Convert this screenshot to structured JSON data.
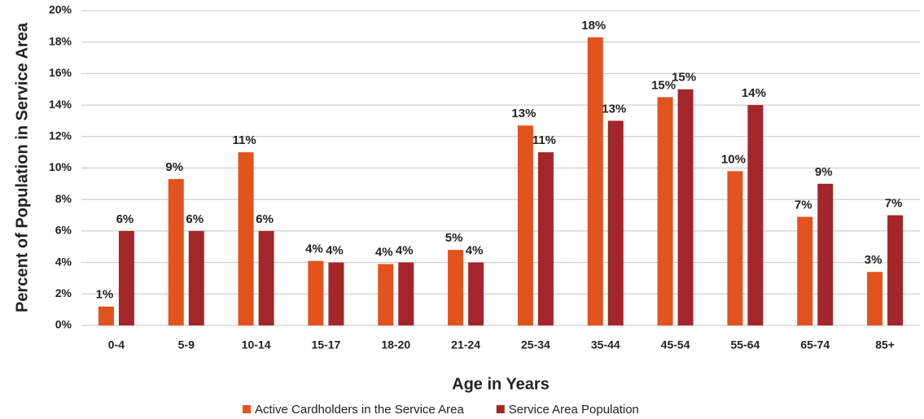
{
  "chart_data": {
    "type": "bar",
    "y_label": "Percent of Population in Service Area",
    "x_label": "Age in Years",
    "categories": [
      "0-4",
      "5-9",
      "10-14",
      "15-17",
      "18-20",
      "21-24",
      "25-34",
      "35-44",
      "45-54",
      "55-64",
      "65-74",
      "85+"
    ],
    "series": [
      {
        "name": "Active Cardholders in the Service Area",
        "color": "#e2531d",
        "values": [
          1.2,
          9.3,
          11.0,
          4.1,
          3.9,
          4.8,
          12.7,
          18.3,
          14.5,
          9.8,
          6.9,
          3.4
        ],
        "value_labels": [
          "1%",
          "9%",
          "11%",
          "4%",
          "4%",
          "5%",
          "13%",
          "18%",
          "15%",
          "10%",
          "7%",
          "3%"
        ]
      },
      {
        "name": "Service Area Population",
        "color": "#a3262a",
        "values": [
          6,
          6,
          6,
          4,
          4,
          4,
          11,
          13,
          15,
          14,
          9,
          7
        ],
        "value_labels": [
          "6%",
          "6%",
          "6%",
          "4%",
          "4%",
          "4%",
          "11%",
          "13%",
          "15%",
          "14%",
          "9%",
          "7%"
        ]
      }
    ],
    "ylim": [
      0,
      20
    ],
    "yticks": [
      {
        "value": 0,
        "label": "0%"
      },
      {
        "value": 2,
        "label": "2%"
      },
      {
        "value": 4,
        "label": "4%"
      },
      {
        "value": 6,
        "label": "6%"
      },
      {
        "value": 8,
        "label": "8%"
      },
      {
        "value": 10,
        "label": "10%"
      },
      {
        "value": 12,
        "label": "12%"
      },
      {
        "value": 14,
        "label": "14%"
      },
      {
        "value": 16,
        "label": "16%"
      },
      {
        "value": 18,
        "label": "18%"
      },
      {
        "value": 20,
        "label": "20%"
      }
    ],
    "grid": true,
    "legend": "bottom"
  }
}
